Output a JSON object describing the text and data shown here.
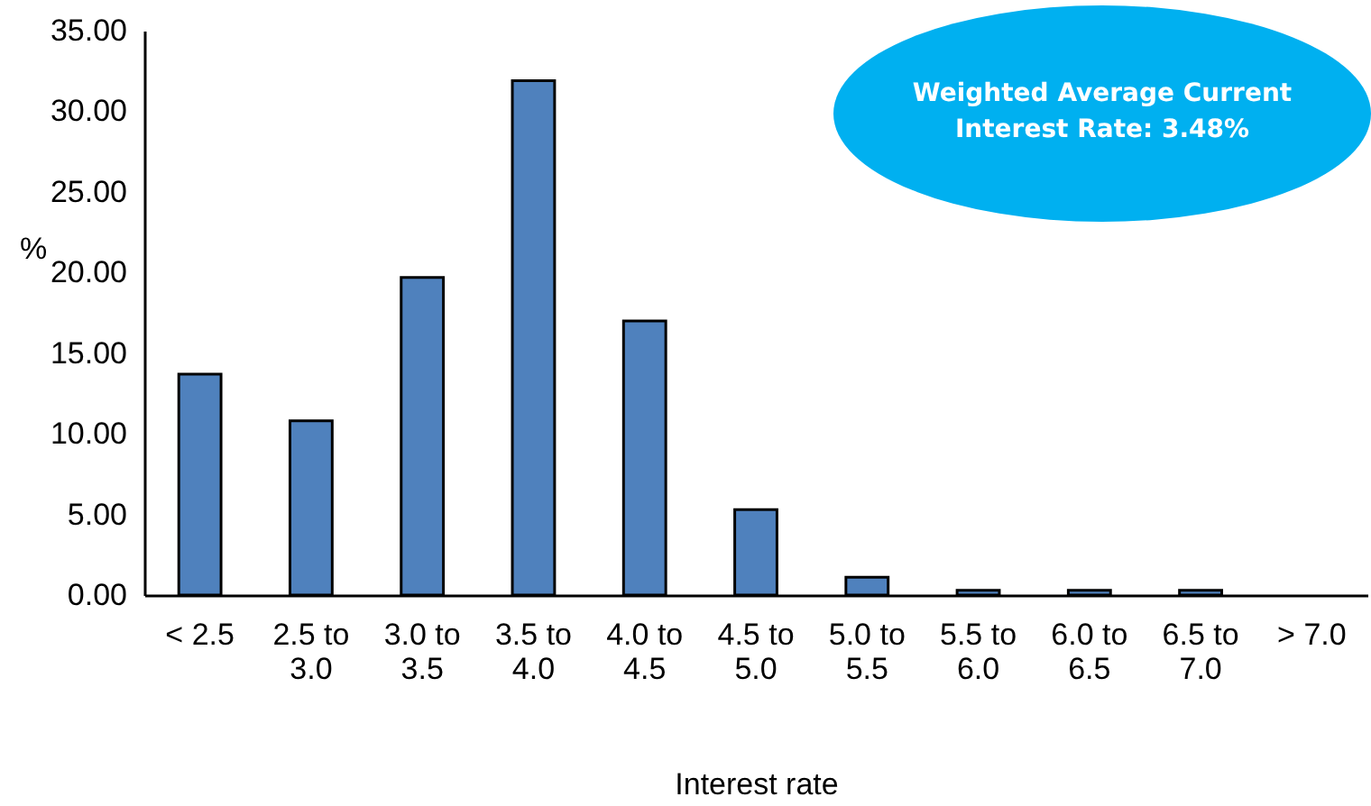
{
  "chart_data": {
    "type": "bar",
    "xlabel": "Interest rate",
    "ylabel": "%",
    "categories": [
      "< 2.5",
      "2.5 to 3.0",
      "3.0 to 3.5",
      "3.5 to 4.0",
      "4.0 to 4.5",
      "4.5 to 5.0",
      "5.0 to 5.5",
      "5.5 to 6.0",
      "6.0 to 6.5",
      "6.5 to 7.0",
      "> 7.0"
    ],
    "values": [
      13.7,
      10.8,
      19.7,
      31.9,
      17.0,
      5.3,
      1.1,
      0.3,
      0.3,
      0.3,
      0
    ],
    "color": "#4f81bd",
    "ylim": [
      0,
      35
    ],
    "yticks": [
      {
        "value": 0,
        "label": "0.00"
      },
      {
        "value": 5,
        "label": "5.00"
      },
      {
        "value": 10,
        "label": "10.00"
      },
      {
        "value": 15,
        "label": "15.00"
      },
      {
        "value": 20,
        "label": "20.00"
      },
      {
        "value": 25,
        "label": "25.00"
      },
      {
        "value": 30,
        "label": "30.00"
      },
      {
        "value": 35,
        "label": "35.00"
      }
    ],
    "annotations": [
      "Weighted Average Current Interest Rate: 3.48%"
    ],
    "grid": false
  }
}
